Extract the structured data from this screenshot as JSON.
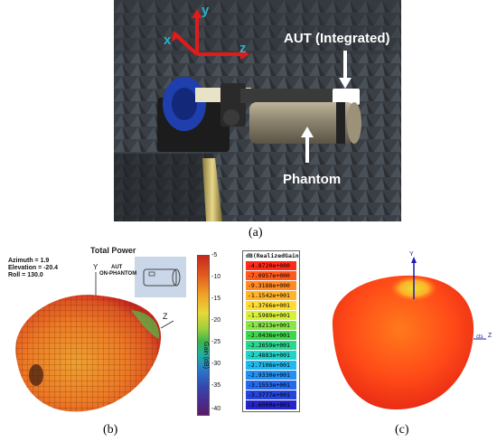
{
  "photo": {
    "aut_label": "AUT (Integrated)",
    "phantom_label": "Phantom",
    "axes": {
      "x": "x",
      "y": "y",
      "z": "z"
    }
  },
  "captions": {
    "a": "(a)",
    "b": "(b)",
    "c": "(c)"
  },
  "panel_b": {
    "title": "Total Power",
    "azimuth": "Azimuth = 1.9",
    "elevation": "Elevation = -20.4",
    "roll": "Roll = 130.0",
    "axis_y": "Y",
    "axis_z": "Z",
    "aut_line1": "AUT",
    "aut_line2": "ON-PHANTOM",
    "colorbar_label": "Gain (dB)",
    "ticks": [
      "-5",
      "-10",
      "-15",
      "-20",
      "-25",
      "-30",
      "-35",
      "-40"
    ]
  },
  "legend": {
    "title": "dB(RealizedGain",
    "entries": [
      {
        "value": "-4.8720e+000",
        "color": "#ff2a1a"
      },
      {
        "value": "-7.0957e+000",
        "color": "#ff5a1c"
      },
      {
        "value": "-9.3188e+000",
        "color": "#ff8a22"
      },
      {
        "value": "-1.1542e+001",
        "color": "#ffb42a"
      },
      {
        "value": "-1.3766e+001",
        "color": "#ffdc32"
      },
      {
        "value": "-1.5989e+001",
        "color": "#d8f03a"
      },
      {
        "value": "-1.8213e+001",
        "color": "#8ae646"
      },
      {
        "value": "-2.0436e+001",
        "color": "#3ed64c"
      },
      {
        "value": "-2.2659e+001",
        "color": "#2ad690"
      },
      {
        "value": "-2.4883e+001",
        "color": "#22d2c8"
      },
      {
        "value": "-2.7106e+001",
        "color": "#20b8ee"
      },
      {
        "value": "-2.9330e+001",
        "color": "#2290f2"
      },
      {
        "value": "-3.1553e+001",
        "color": "#2468ee"
      },
      {
        "value": "-3.3777e+001",
        "color": "#2444dc"
      },
      {
        "value": "-3.6000e+001",
        "color": "#2424c8"
      }
    ]
  },
  "panel_c": {
    "axis_y": "Y",
    "axis_z": "Z",
    "axis_cts": "cts"
  }
}
